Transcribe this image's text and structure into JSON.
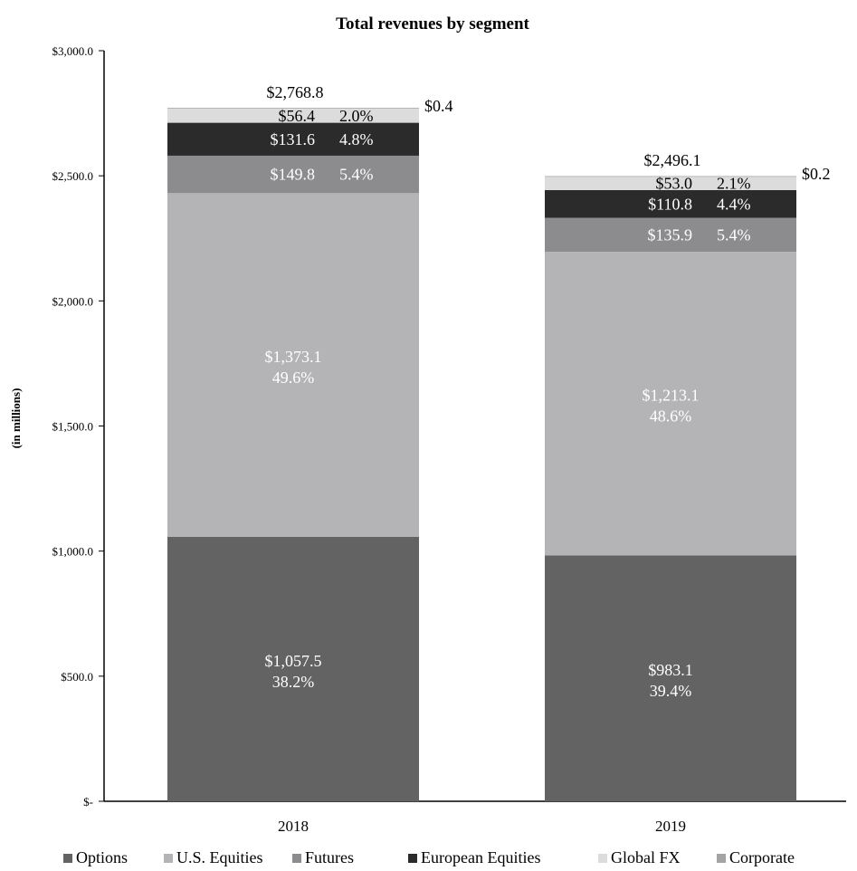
{
  "chart_data": {
    "type": "bar",
    "stacked": true,
    "title": "Total revenues by segment",
    "xlabel": "",
    "ylabel": "(in millions)",
    "ylim": [
      0,
      3000
    ],
    "yticks": [
      0,
      500,
      1000,
      1500,
      2000,
      2500,
      3000
    ],
    "ytick_labels": [
      "$-",
      "$500.0",
      "$1,000.0",
      "$1,500.0",
      "$2,000.0",
      "$2,500.0",
      "$3,000.0"
    ],
    "categories": [
      "2018",
      "2019"
    ],
    "totals": [
      2768.8,
      2496.1
    ],
    "total_labels": [
      "$2,768.8",
      "$2,496.1"
    ],
    "grid": false,
    "legend_position": "bottom",
    "series": [
      {
        "name": "Options",
        "color": "#636363",
        "text_color": "#ffffff",
        "values": [
          1057.5,
          983.1
        ],
        "labels": [
          "$1,057.5",
          "$983.1"
        ],
        "percents": [
          "38.2%",
          "39.4%"
        ]
      },
      {
        "name": "U.S. Equities",
        "color": "#b4b4b6",
        "text_color": "#ffffff",
        "values": [
          1373.1,
          1213.1
        ],
        "labels": [
          "$1,373.1",
          "$1,213.1"
        ],
        "percents": [
          "49.6%",
          "48.6%"
        ]
      },
      {
        "name": "Futures",
        "color": "#8c8c8e",
        "text_color": "#ffffff",
        "values": [
          149.8,
          135.9
        ],
        "labels": [
          "$149.8",
          "$135.9"
        ],
        "percents": [
          "5.4%",
          "5.4%"
        ]
      },
      {
        "name": "European Equities",
        "color": "#2b2b2b",
        "text_color": "#ffffff",
        "values": [
          131.6,
          110.8
        ],
        "labels": [
          "$131.6",
          "$110.8"
        ],
        "percents": [
          "4.8%",
          "4.4%"
        ]
      },
      {
        "name": "Global FX",
        "color": "#dcdcdc",
        "text_color": "#000000",
        "values": [
          56.4,
          53.0
        ],
        "labels": [
          "$56.4",
          "$53.0"
        ],
        "percents": [
          "2.0%",
          "2.1%"
        ]
      },
      {
        "name": "Corporate",
        "color": "#a4a4a4",
        "text_color": "#000000",
        "values": [
          0.4,
          0.2
        ],
        "labels": [
          "$0.4",
          "$0.2"
        ],
        "percents": [
          "",
          ""
        ]
      }
    ]
  }
}
